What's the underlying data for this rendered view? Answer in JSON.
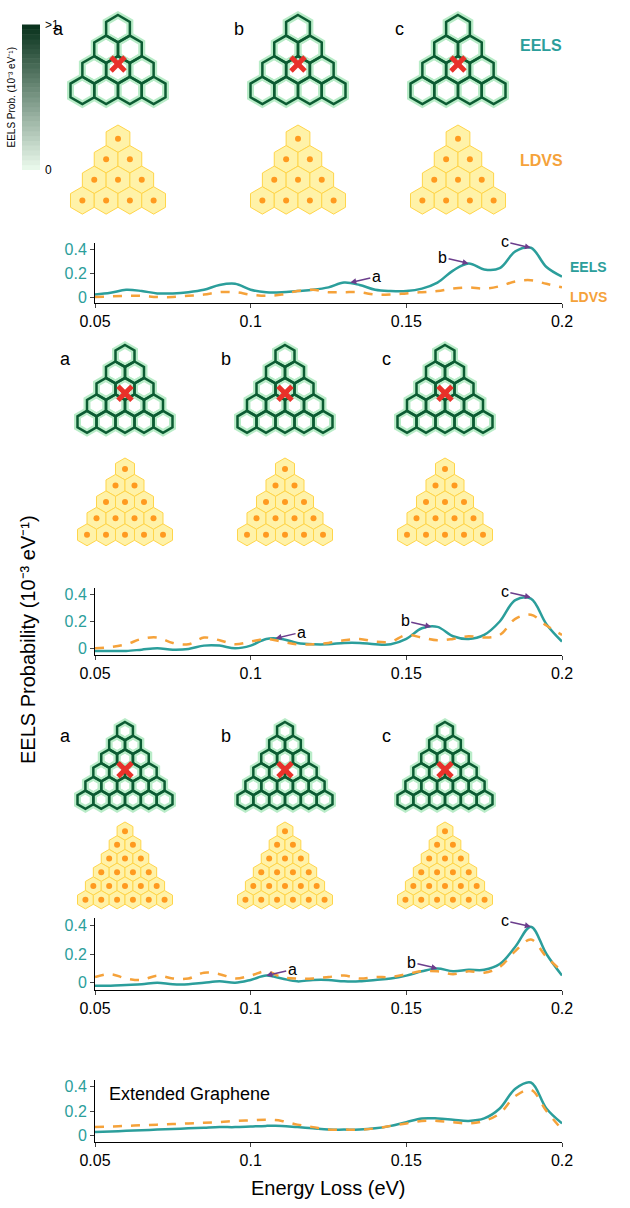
{
  "chart_data": [
    {
      "type": "line",
      "x": [
        0.05,
        0.055,
        0.06,
        0.065,
        0.07,
        0.075,
        0.08,
        0.085,
        0.09,
        0.095,
        0.1,
        0.105,
        0.11,
        0.115,
        0.12,
        0.125,
        0.13,
        0.135,
        0.14,
        0.145,
        0.15,
        0.155,
        0.16,
        0.165,
        0.17,
        0.175,
        0.18,
        0.185,
        0.19,
        0.195,
        0.2
      ],
      "series": [
        {
          "name": "EELS",
          "color": "#2b9e9b",
          "line_style": "solid",
          "values": [
            0.02,
            0.035,
            0.06,
            0.05,
            0.03,
            0.03,
            0.04,
            0.06,
            0.1,
            0.11,
            0.06,
            0.04,
            0.04,
            0.05,
            0.06,
            0.08,
            0.12,
            0.1,
            0.06,
            0.05,
            0.05,
            0.07,
            0.12,
            0.22,
            0.28,
            0.23,
            0.24,
            0.38,
            0.41,
            0.25,
            0.17
          ]
        },
        {
          "name": "LDVS",
          "color": "#f5a23a",
          "line_style": "dash",
          "values": [
            0,
            0.005,
            0.01,
            0.01,
            0,
            0,
            0.01,
            0.02,
            0.04,
            0.04,
            0.02,
            0.01,
            0.02,
            0.05,
            0.06,
            0.04,
            0.04,
            0.04,
            0.02,
            0.02,
            0.03,
            0.04,
            0.05,
            0.07,
            0.08,
            0.07,
            0.09,
            0.13,
            0.14,
            0.11,
            0.08
          ]
        }
      ],
      "xlim": [
        0.05,
        0.2
      ],
      "xticks": [
        0.05,
        0.1,
        0.15,
        0.2
      ],
      "ylim": [
        -0.05,
        0.45
      ],
      "yticks": [
        0,
        0.2,
        0.4
      ],
      "annotations": [
        {
          "text": "a",
          "x": 0.132,
          "y": 0.12
        },
        {
          "text": "b",
          "x": 0.17,
          "y": 0.28
        },
        {
          "text": "c",
          "x": 0.19,
          "y": 0.41
        }
      ],
      "inset_labels": [
        "a",
        "b",
        "c"
      ],
      "inset_rows": [
        "EELS",
        "LDVS"
      ]
    },
    {
      "type": "line",
      "x": [
        0.05,
        0.055,
        0.06,
        0.065,
        0.07,
        0.075,
        0.08,
        0.085,
        0.09,
        0.095,
        0.1,
        0.105,
        0.11,
        0.115,
        0.12,
        0.125,
        0.13,
        0.135,
        0.14,
        0.145,
        0.15,
        0.155,
        0.16,
        0.165,
        0.17,
        0.175,
        0.18,
        0.185,
        0.19,
        0.195,
        0.2
      ],
      "series": [
        {
          "color": "#2b9e9b",
          "line_style": "solid",
          "values": [
            -0.02,
            -0.02,
            -0.02,
            -0.01,
            0,
            -0.01,
            -0.005,
            0.02,
            0.02,
            0,
            0.02,
            0.07,
            0.07,
            0.04,
            0.03,
            0.03,
            0.04,
            0.04,
            0.03,
            0.03,
            0.07,
            0.15,
            0.16,
            0.09,
            0.07,
            0.1,
            0.2,
            0.36,
            0.37,
            0.18,
            0.05
          ]
        },
        {
          "color": "#f5a23a",
          "line_style": "dash",
          "values": [
            0,
            0.01,
            0.03,
            0.07,
            0.08,
            0.04,
            0.03,
            0.08,
            0.06,
            0.03,
            0.05,
            0.07,
            0.05,
            0.03,
            0.03,
            0.04,
            0.06,
            0.07,
            0.05,
            0.05,
            0.1,
            0.08,
            0.06,
            0.07,
            0.09,
            0.08,
            0.1,
            0.22,
            0.25,
            0.17,
            0.1
          ]
        }
      ],
      "xlim": [
        0.05,
        0.2
      ],
      "xticks": [
        0.05,
        0.1,
        0.15,
        0.2
      ],
      "ylim": [
        -0.05,
        0.45
      ],
      "yticks": [
        0,
        0.2,
        0.4
      ],
      "annotations": [
        {
          "text": "a",
          "x": 0.108,
          "y": 0.075
        },
        {
          "text": "b",
          "x": 0.158,
          "y": 0.16
        },
        {
          "text": "c",
          "x": 0.19,
          "y": 0.38
        }
      ],
      "inset_labels": [
        "a",
        "b",
        "c"
      ]
    },
    {
      "type": "line",
      "x": [
        0.05,
        0.055,
        0.06,
        0.065,
        0.07,
        0.075,
        0.08,
        0.085,
        0.09,
        0.095,
        0.1,
        0.105,
        0.11,
        0.115,
        0.12,
        0.125,
        0.13,
        0.135,
        0.14,
        0.145,
        0.15,
        0.155,
        0.16,
        0.165,
        0.17,
        0.175,
        0.18,
        0.185,
        0.19,
        0.195,
        0.2
      ],
      "series": [
        {
          "color": "#2b9e9b",
          "line_style": "solid",
          "values": [
            -0.02,
            -0.02,
            -0.015,
            -0.01,
            0,
            -0.01,
            -0.01,
            0,
            0.01,
            0,
            0.02,
            0.05,
            0.03,
            0.01,
            0.02,
            0.02,
            0.01,
            0.01,
            0.02,
            0.03,
            0.05,
            0.08,
            0.1,
            0.08,
            0.09,
            0.09,
            0.13,
            0.25,
            0.39,
            0.2,
            0.05
          ]
        },
        {
          "color": "#f5a23a",
          "line_style": "dash",
          "values": [
            0.04,
            0.06,
            0.03,
            0.02,
            0.05,
            0.03,
            0.03,
            0.07,
            0.06,
            0.03,
            0.05,
            0.08,
            0.04,
            0.03,
            0.03,
            0.04,
            0.05,
            0.03,
            0.04,
            0.04,
            0.06,
            0.08,
            0.08,
            0.06,
            0.08,
            0.07,
            0.11,
            0.22,
            0.3,
            0.18,
            0.08
          ]
        }
      ],
      "xlim": [
        0.05,
        0.2
      ],
      "xticks": [
        0.05,
        0.1,
        0.15,
        0.2
      ],
      "ylim": [
        -0.05,
        0.45
      ],
      "yticks": [
        0,
        0.2,
        0.4
      ],
      "annotations": [
        {
          "text": "a",
          "x": 0.105,
          "y": 0.05
        },
        {
          "text": "b",
          "x": 0.16,
          "y": 0.1
        },
        {
          "text": "c",
          "x": 0.19,
          "y": 0.39
        }
      ],
      "inset_labels": [
        "a",
        "b",
        "c"
      ]
    },
    {
      "type": "line",
      "title": "Extended Graphene",
      "xlabel": "Energy Loss (eV)",
      "x": [
        0.05,
        0.055,
        0.06,
        0.065,
        0.07,
        0.075,
        0.08,
        0.085,
        0.09,
        0.095,
        0.1,
        0.105,
        0.11,
        0.115,
        0.12,
        0.125,
        0.13,
        0.135,
        0.14,
        0.145,
        0.15,
        0.155,
        0.16,
        0.165,
        0.17,
        0.175,
        0.18,
        0.185,
        0.19,
        0.195,
        0.2
      ],
      "series": [
        {
          "color": "#2b9e9b",
          "line_style": "solid",
          "values": [
            0.03,
            0.035,
            0.04,
            0.045,
            0.05,
            0.055,
            0.06,
            0.065,
            0.07,
            0.07,
            0.075,
            0.08,
            0.08,
            0.07,
            0.06,
            0.05,
            0.05,
            0.05,
            0.06,
            0.08,
            0.11,
            0.14,
            0.14,
            0.13,
            0.12,
            0.14,
            0.22,
            0.38,
            0.43,
            0.22,
            0.1
          ]
        },
        {
          "color": "#f5a23a",
          "line_style": "dash",
          "values": [
            0.07,
            0.075,
            0.08,
            0.085,
            0.09,
            0.095,
            0.1,
            0.105,
            0.11,
            0.12,
            0.125,
            0.13,
            0.12,
            0.09,
            0.07,
            0.05,
            0.05,
            0.05,
            0.06,
            0.08,
            0.1,
            0.12,
            0.12,
            0.11,
            0.1,
            0.12,
            0.18,
            0.32,
            0.37,
            0.2,
            0.05
          ]
        }
      ],
      "xlim": [
        0.05,
        0.2
      ],
      "xticks": [
        0.05,
        0.1,
        0.15,
        0.2
      ],
      "ylim": [
        -0.05,
        0.45
      ],
      "yticks": [
        0,
        0.2,
        0.4
      ]
    }
  ],
  "ylabel": "EELS Probability (10⁻³ eV⁻¹)",
  "colorbar": {
    "title": "EELS Prob. (10⁻³ eV⁻¹)",
    "range": [
      0,
      1
    ],
    "ticks": [
      {
        "value": 1,
        "label": ">1"
      },
      0
    ]
  }
}
